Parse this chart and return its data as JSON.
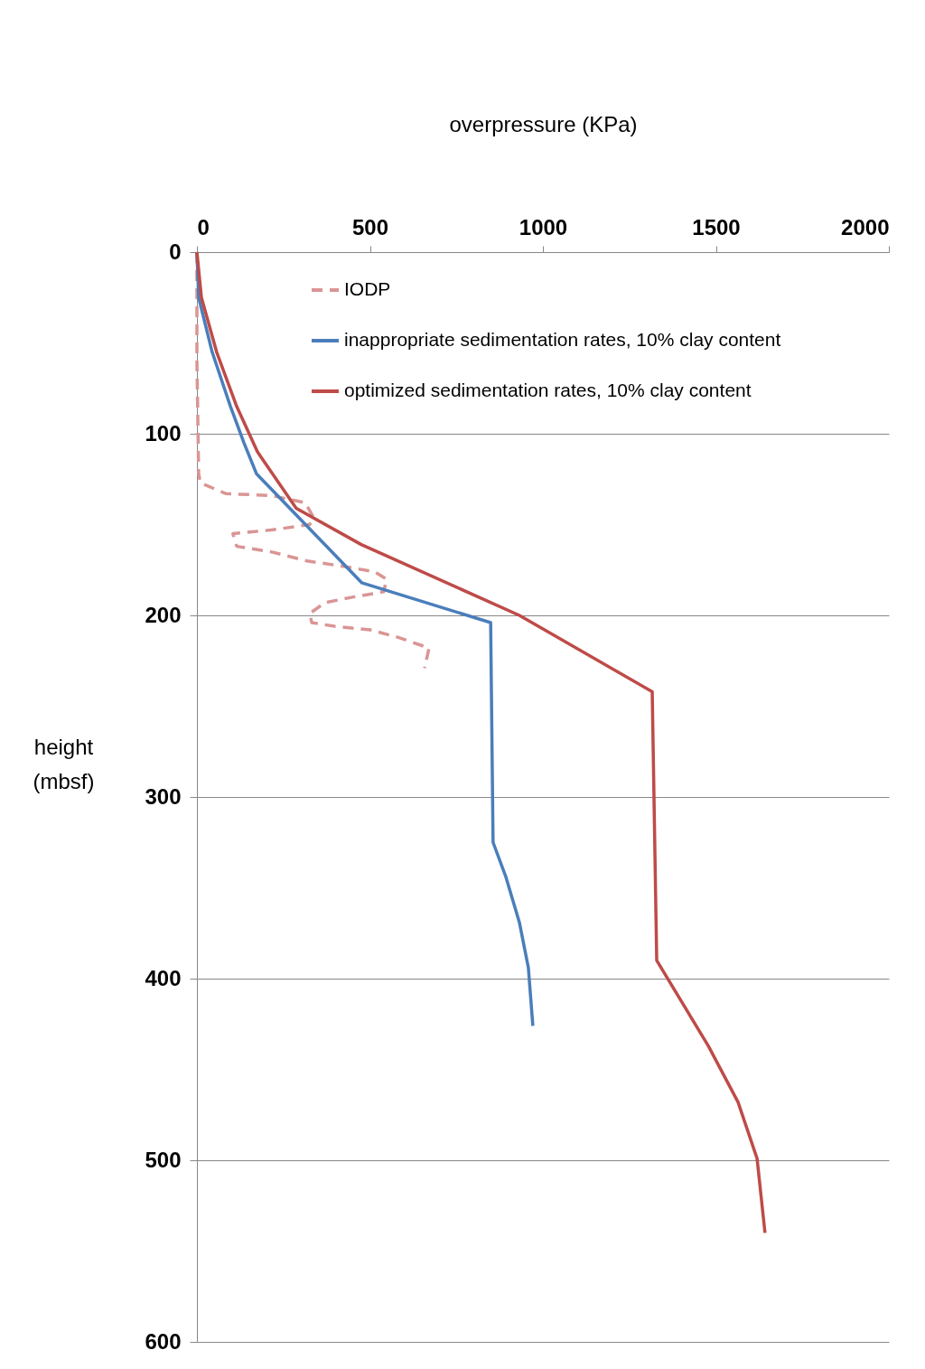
{
  "chart_data": {
    "type": "line",
    "xlabel": "overpressure (KPa)",
    "ylabel": "height (mbsf)",
    "xlim": [
      0,
      2000
    ],
    "xticks": [
      0,
      500,
      1000,
      1500,
      2000
    ],
    "ylim": [
      600,
      0
    ],
    "yticks": [
      0,
      100,
      200,
      300,
      400,
      500,
      600
    ],
    "grid": "y",
    "legend": "top right",
    "series": [
      {
        "name": "IODP",
        "color": "#d99594",
        "line_style": "dashed",
        "x": [
          0,
          0,
          5,
          10,
          84,
          214,
          313,
          337,
          326,
          214,
          104,
          115,
          214,
          318,
          423,
          514,
          548,
          540,
          449,
          370,
          326,
          332,
          397,
          501,
          580,
          671,
          658
        ],
        "values": [
          0,
          60,
          122,
          127,
          133,
          134,
          138,
          146,
          150,
          153,
          155,
          162,
          165,
          170,
          173,
          176,
          180,
          187,
          190,
          193,
          199,
          204,
          206,
          208,
          212,
          218,
          229
        ]
      },
      {
        "name": "inappropriate sedimentation rates, 10% clay content",
        "color": "#4a7ebb",
        "line_style": "solid",
        "x": [
          0,
          5,
          44,
          97,
          136,
          172,
          476,
          849,
          856,
          893,
          932,
          958,
          971
        ],
        "values": [
          0,
          25,
          55,
          85,
          105,
          122,
          182,
          204,
          325,
          344,
          369,
          394,
          426
        ]
      },
      {
        "name": "optimized sedimentation rates, 10% clay content",
        "color": "#be4b48",
        "line_style": "solid",
        "x": [
          0,
          13,
          57,
          115,
          175,
          287,
          475,
          932,
          1316,
          1329,
          1478,
          1564,
          1619,
          1642
        ],
        "values": [
          0,
          25,
          55,
          85,
          110,
          141,
          161,
          200,
          242,
          390,
          437,
          468,
          499,
          540
        ]
      }
    ]
  }
}
